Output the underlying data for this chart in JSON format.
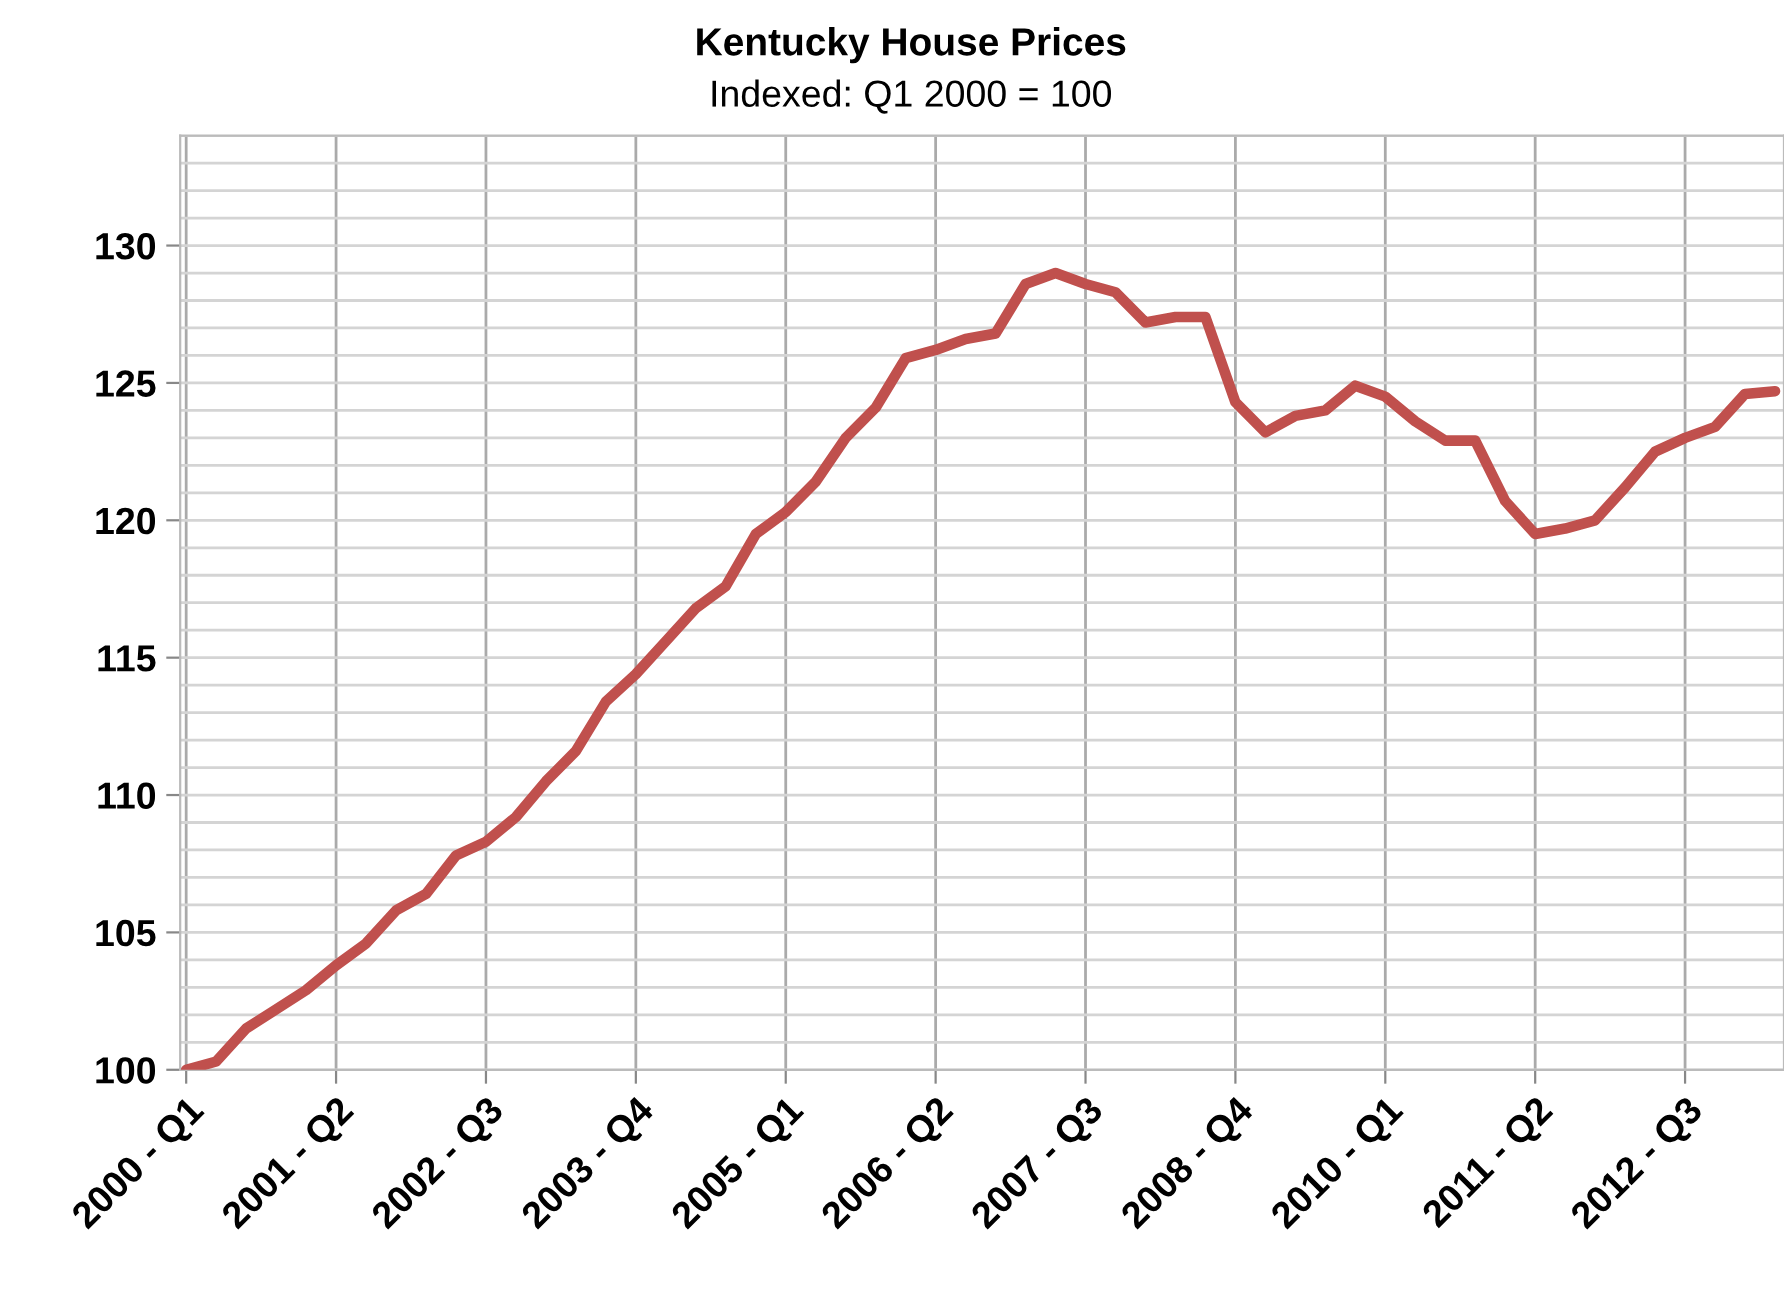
{
  "chart_data": {
    "type": "line",
    "title": "Kentucky House Prices",
    "subtitle": "Indexed: Q1 2000 = 100",
    "categories": [
      "2000 - Q1",
      null,
      null,
      null,
      null,
      "2001 - Q2",
      null,
      null,
      null,
      null,
      "2002 - Q3",
      null,
      null,
      null,
      null,
      "2003 - Q4",
      null,
      null,
      null,
      null,
      "2005 - Q1",
      null,
      null,
      null,
      null,
      "2006 - Q2",
      null,
      null,
      null,
      null,
      "2007 - Q3",
      null,
      null,
      null,
      null,
      "2008 - Q4",
      null,
      null,
      null,
      null,
      "2010 - Q1",
      null,
      null,
      null,
      null,
      "2011 - Q2",
      null,
      null,
      null,
      null,
      "2012 - Q3",
      null,
      null,
      null
    ],
    "series": [
      {
        "color": "#c0504d",
        "values": [
          100.0,
          100.3,
          101.5,
          102.2,
          102.9,
          103.8,
          104.6,
          105.8,
          106.4,
          107.8,
          108.3,
          109.2,
          110.5,
          111.6,
          113.4,
          114.4,
          115.6,
          116.8,
          117.6,
          119.5,
          120.3,
          121.4,
          123.0,
          124.1,
          125.9,
          126.2,
          126.6,
          126.8,
          128.6,
          129.0,
          128.6,
          128.3,
          127.2,
          127.4,
          127.4,
          124.3,
          123.2,
          123.8,
          124.0,
          124.9,
          124.5,
          123.6,
          122.9,
          122.9,
          120.7,
          119.5,
          119.7,
          120.0,
          121.2,
          122.5,
          123.0,
          123.4,
          124.6,
          124.7
        ]
      }
    ],
    "ylim": [
      100,
      134
    ],
    "yticks": [
      100,
      {
        "value": 101,
        "label": null
      },
      {
        "value": 102,
        "label": null
      },
      {
        "value": 103,
        "label": null
      },
      {
        "value": 104,
        "label": null
      },
      105,
      {
        "value": 106,
        "label": null
      },
      {
        "value": 107,
        "label": null
      },
      {
        "value": 108,
        "label": null
      },
      {
        "value": 109,
        "label": null
      },
      110,
      {
        "value": 111,
        "label": null
      },
      {
        "value": 112,
        "label": null
      },
      {
        "value": 113,
        "label": null
      },
      {
        "value": 114,
        "label": null
      },
      115,
      {
        "value": 116,
        "label": null
      },
      {
        "value": 117,
        "label": null
      },
      {
        "value": 118,
        "label": null
      },
      {
        "value": 119,
        "label": null
      },
      120,
      {
        "value": 121,
        "label": null
      },
      {
        "value": 122,
        "label": null
      },
      {
        "value": 123,
        "label": null
      },
      {
        "value": 124,
        "label": null
      },
      125,
      {
        "value": 126,
        "label": null
      },
      {
        "value": 127,
        "label": null
      },
      {
        "value": 128,
        "label": null
      },
      {
        "value": 129,
        "label": null
      },
      130,
      {
        "value": 131,
        "label": null
      },
      {
        "value": 132,
        "label": null
      },
      {
        "value": 133,
        "label": null
      },
      {
        "value": 134,
        "label": null
      }
    ],
    "grid": true,
    "line_style": "solid"
  }
}
